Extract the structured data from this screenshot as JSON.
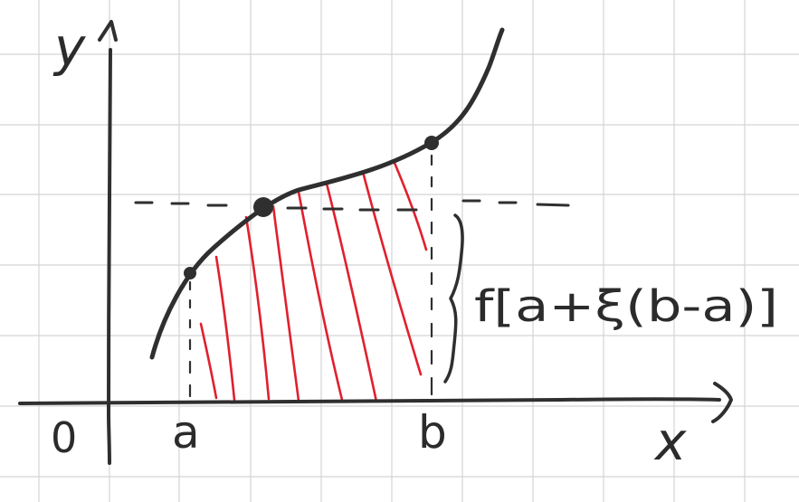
{
  "labels": {
    "y_axis": "y",
    "x_axis": "x",
    "origin": "0",
    "point_a": "a",
    "point_b": "b",
    "height_label": "f[a+ξ(b-a)]"
  },
  "colors": {
    "ink": "#2f2f2f",
    "hatch": "#e0202e",
    "grid": "#d4d4d4",
    "paper": "#ffffff"
  }
}
